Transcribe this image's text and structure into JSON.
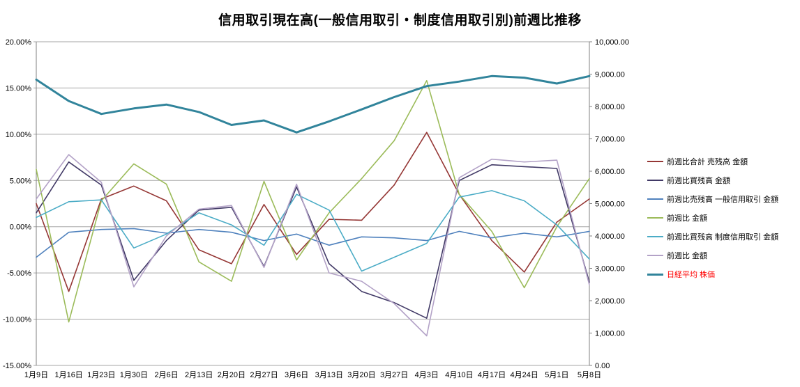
{
  "chart_data": {
    "type": "line",
    "title": "信用取引現在高(一般信用取引・制度信用取引別)前週比推移",
    "categories": [
      "1月9日",
      "1月16日",
      "1月23日",
      "1月30日",
      "2月6日",
      "2月13日",
      "2月20日",
      "2月27日",
      "3月6日",
      "3月13日",
      "3月20日",
      "3月27日",
      "4月3日",
      "4月10日",
      "4月17日",
      "4月24日",
      "5月1日",
      "5月8日"
    ],
    "left_axis": {
      "min": -15,
      "max": 20,
      "step": 5,
      "unit": "%"
    },
    "right_axis": {
      "min": 0,
      "max": 10000,
      "step": 1000
    },
    "grid": "horizontal",
    "legend_position": "right",
    "series": [
      {
        "name": "前週比合計 売残高 金額",
        "color": "#953735",
        "axis": "left",
        "width": 1.6,
        "values": [
          2.5,
          -7.0,
          3.0,
          4.4,
          2.8,
          -2.5,
          -4.0,
          2.4,
          -3.0,
          0.8,
          0.7,
          4.5,
          10.2,
          3.5,
          -1.5,
          -4.9,
          0.5,
          3.0
        ]
      },
      {
        "name": "前週比買残高 金額",
        "color": "#413966",
        "axis": "left",
        "width": 1.6,
        "values": [
          1.5,
          7.0,
          4.5,
          -5.8,
          -1.5,
          1.8,
          2.1,
          -4.3,
          4.3,
          -4.0,
          -7.0,
          -8.2,
          -9.9,
          5.0,
          6.7,
          6.5,
          6.3,
          -6.0
        ]
      },
      {
        "name": "前週比売残高 一般信用取引 金額",
        "color": "#4F81BD",
        "axis": "left",
        "width": 1.6,
        "values": [
          -3.3,
          -0.6,
          -0.3,
          -0.2,
          -0.7,
          -0.3,
          -0.6,
          -1.5,
          -0.8,
          -2.0,
          -1.1,
          -1.2,
          -1.5,
          -0.5,
          -1.2,
          -0.7,
          -1.1,
          -0.5
        ]
      },
      {
        "name": "前週比 金額",
        "color": "#9BBB59",
        "axis": "left",
        "width": 1.6,
        "values": [
          6.2,
          -10.3,
          2.8,
          6.8,
          4.6,
          -3.8,
          -5.9,
          4.9,
          -3.6,
          1.5,
          5.2,
          9.3,
          15.8,
          3.5,
          -0.5,
          -6.6,
          0.0,
          5.2
        ]
      },
      {
        "name": "前週比買残高 制度信用取引 金額",
        "color": "#4BACC6",
        "axis": "left",
        "width": 1.6,
        "values": [
          1.0,
          2.7,
          2.9,
          -2.3,
          -0.8,
          1.5,
          0.2,
          -2.0,
          3.5,
          1.8,
          -4.8,
          -3.3,
          -1.8,
          3.2,
          3.9,
          2.8,
          0.2,
          -3.5
        ]
      },
      {
        "name": "前週比 金額",
        "color": "#B3A2C7",
        "axis": "left",
        "width": 1.6,
        "values": [
          3.0,
          7.8,
          4.8,
          -6.5,
          -1.0,
          1.9,
          2.3,
          -4.4,
          4.6,
          -5.0,
          -5.9,
          -8.3,
          -11.8,
          5.3,
          7.3,
          7.0,
          7.2,
          -6.3
        ]
      },
      {
        "name": "日経平均 株価",
        "color": "#31849B",
        "axis": "right",
        "width": 3,
        "legend_color": "#FF0000",
        "values": [
          8830,
          8170,
          7770,
          7940,
          8060,
          7830,
          7430,
          7570,
          7200,
          7540,
          7910,
          8290,
          8630,
          8770,
          8940,
          8890,
          8710,
          8940
        ]
      }
    ]
  }
}
